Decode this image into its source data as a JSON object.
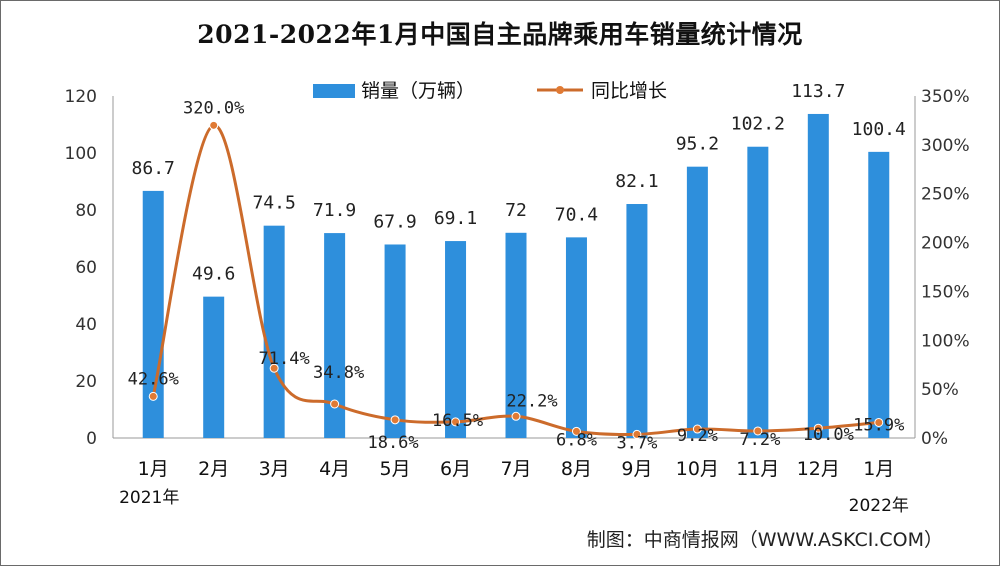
{
  "title": "2021-2022年1月中国自主品牌乘用车销量统计情况",
  "source": "制图：中商情报网（WWW.ASKCI.COM）",
  "chart_data": {
    "type": "bar",
    "title": "2021-2022年1月中国自主品牌乘用车销量统计情况",
    "categories": [
      "1月",
      "2月",
      "3月",
      "4月",
      "5月",
      "6月",
      "7月",
      "8月",
      "9月",
      "10月",
      "11月",
      "12月",
      "1月"
    ],
    "year_labels": {
      "first": "2021年",
      "last": "2022年"
    },
    "series": [
      {
        "name": "销量（万辆）",
        "type": "bar",
        "axis": "left",
        "color": "#2e8fdc",
        "values": [
          86.7,
          49.6,
          74.5,
          71.9,
          67.9,
          69.1,
          72,
          70.4,
          82.1,
          95.2,
          102.2,
          113.7,
          100.4
        ],
        "labels": [
          "86.7",
          "49.6",
          "74.5",
          "71.9",
          "67.9",
          "69.1",
          "72",
          "70.4",
          "82.1",
          "95.2",
          "102.2",
          "113.7",
          "100.4"
        ]
      },
      {
        "name": "同比增长",
        "type": "line",
        "axis": "right",
        "color": "#cc6b2b",
        "marker_color": "#e07a34",
        "values": [
          42.6,
          320.0,
          71.4,
          34.8,
          18.6,
          16.5,
          22.2,
          6.8,
          3.7,
          9.2,
          7.2,
          10.0,
          15.9
        ],
        "labels": [
          "42.6%",
          "320.0%",
          "71.4%",
          "34.8%",
          "18.6%",
          "16.5%",
          "22.2%",
          "6.8%",
          "3.7%",
          "9.2%",
          "7.2%",
          "10.0%",
          "15.9%"
        ]
      }
    ],
    "y_left": {
      "ylim": [
        0,
        120
      ],
      "ticks": [
        "0",
        "20",
        "40",
        "60",
        "80",
        "100",
        "120"
      ]
    },
    "y_right": {
      "ylim": [
        0,
        350
      ],
      "ticks": [
        "0%",
        "50%",
        "100%",
        "150%",
        "200%",
        "250%",
        "300%",
        "350%"
      ]
    },
    "legend": {
      "placement": "top-center"
    },
    "grid": false
  }
}
